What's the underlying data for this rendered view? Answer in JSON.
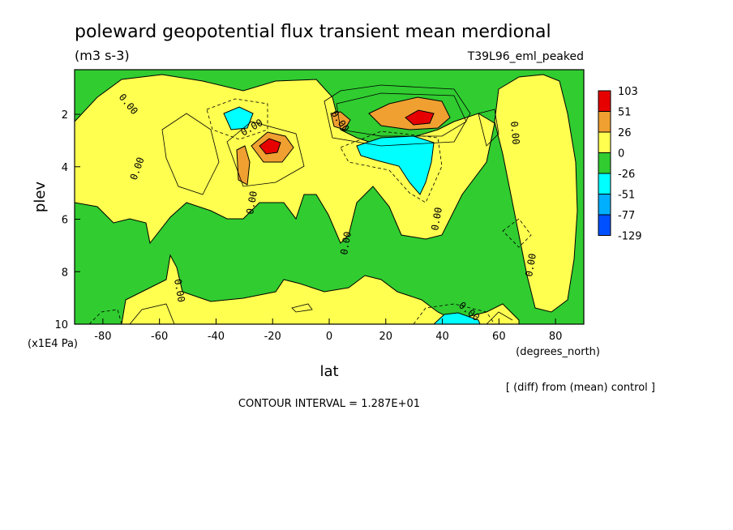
{
  "chart_data": {
    "type": "heatmap",
    "title": "poleward geopotential flux transient mean merdional",
    "units": "(m3 s-3)",
    "run_label": "T39L96_eml_peaked",
    "xlabel": "lat",
    "x_units": "(degrees_north)",
    "ylabel": "plev",
    "y_units": "(x1E4 Pa)",
    "xlim": [
      -90,
      90
    ],
    "ylim": [
      10,
      0.3
    ],
    "x_ticks": [
      -80,
      -60,
      -40,
      -20,
      0,
      20,
      40,
      60,
      80
    ],
    "x_tick_labels": [
      "-80",
      "-60",
      "-40",
      "-20",
      "0",
      "20",
      "40",
      "60",
      "80"
    ],
    "y_ticks": [
      2,
      4,
      6,
      8,
      10
    ],
    "y_tick_labels": [
      "2",
      "4",
      "6",
      "8",
      "10"
    ],
    "contour_labels": [
      "0.00"
    ],
    "colorbar": {
      "levels": [
        "103",
        "51",
        "26",
        "0",
        "-26",
        "-51",
        "-77",
        "-129"
      ],
      "colors": [
        "#e60000",
        "#f0a030",
        "#ffff50",
        "#30cc30",
        "#00ffff",
        "#00b0ff",
        "#0050ff"
      ]
    },
    "features": [
      {
        "lat": 30,
        "plev": 2.0,
        "value": 90
      },
      {
        "lat": -20,
        "plev": 3.1,
        "value": 80
      },
      {
        "lat": -30,
        "plev": 2.0,
        "value": -40
      },
      {
        "lat": 22,
        "plev": 3.2,
        "value": -45
      },
      {
        "lat": 48,
        "plev": 9.9,
        "value": -40
      }
    ],
    "footer_note": "[ (diff) from (mean) control ]",
    "contour_interval": "CONTOUR INTERVAL = 1.287E+01"
  }
}
